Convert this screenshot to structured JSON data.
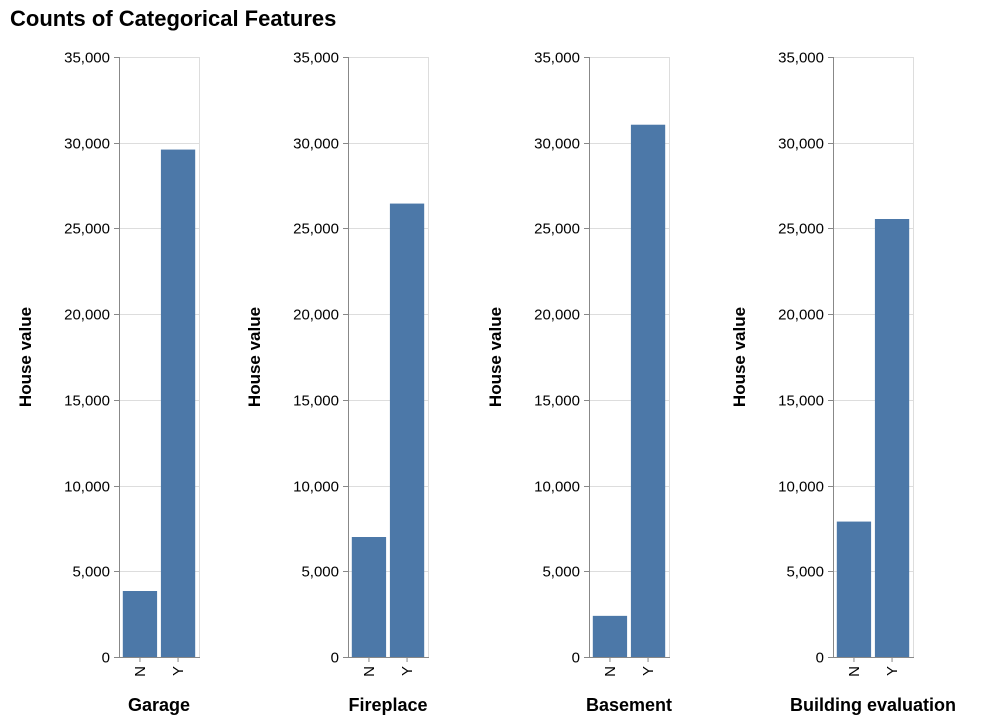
{
  "chart_data": [
    {
      "type": "bar",
      "title": "Counts of Categorical Features",
      "xlabel": "Garage",
      "ylabel": "House value",
      "categories": [
        "N",
        "Y"
      ],
      "values": [
        3850,
        29600
      ],
      "ylim": [
        0,
        35000
      ],
      "yticks": [
        0,
        5000,
        10000,
        15000,
        20000,
        25000,
        30000,
        35000
      ],
      "grid": true,
      "bar_color": "#4c78a8"
    },
    {
      "type": "bar",
      "xlabel": "Fireplace",
      "ylabel": "House value",
      "categories": [
        "N",
        "Y"
      ],
      "values": [
        7000,
        26450
      ],
      "ylim": [
        0,
        35000
      ],
      "yticks": [
        0,
        5000,
        10000,
        15000,
        20000,
        25000,
        30000,
        35000
      ],
      "grid": true,
      "bar_color": "#4c78a8"
    },
    {
      "type": "bar",
      "xlabel": "Basement",
      "ylabel": "House value",
      "categories": [
        "N",
        "Y"
      ],
      "values": [
        2400,
        31050
      ],
      "ylim": [
        0,
        35000
      ],
      "yticks": [
        0,
        5000,
        10000,
        15000,
        20000,
        25000,
        30000,
        35000
      ],
      "grid": true,
      "bar_color": "#4c78a8"
    },
    {
      "type": "bar",
      "xlabel": "Building evaluation",
      "ylabel": "House value",
      "categories": [
        "N",
        "Y"
      ],
      "values": [
        7900,
        25550
      ],
      "ylim": [
        0,
        35000
      ],
      "yticks": [
        0,
        5000,
        10000,
        15000,
        20000,
        25000,
        30000,
        35000
      ],
      "grid": true,
      "bar_color": "#4c78a8"
    }
  ]
}
